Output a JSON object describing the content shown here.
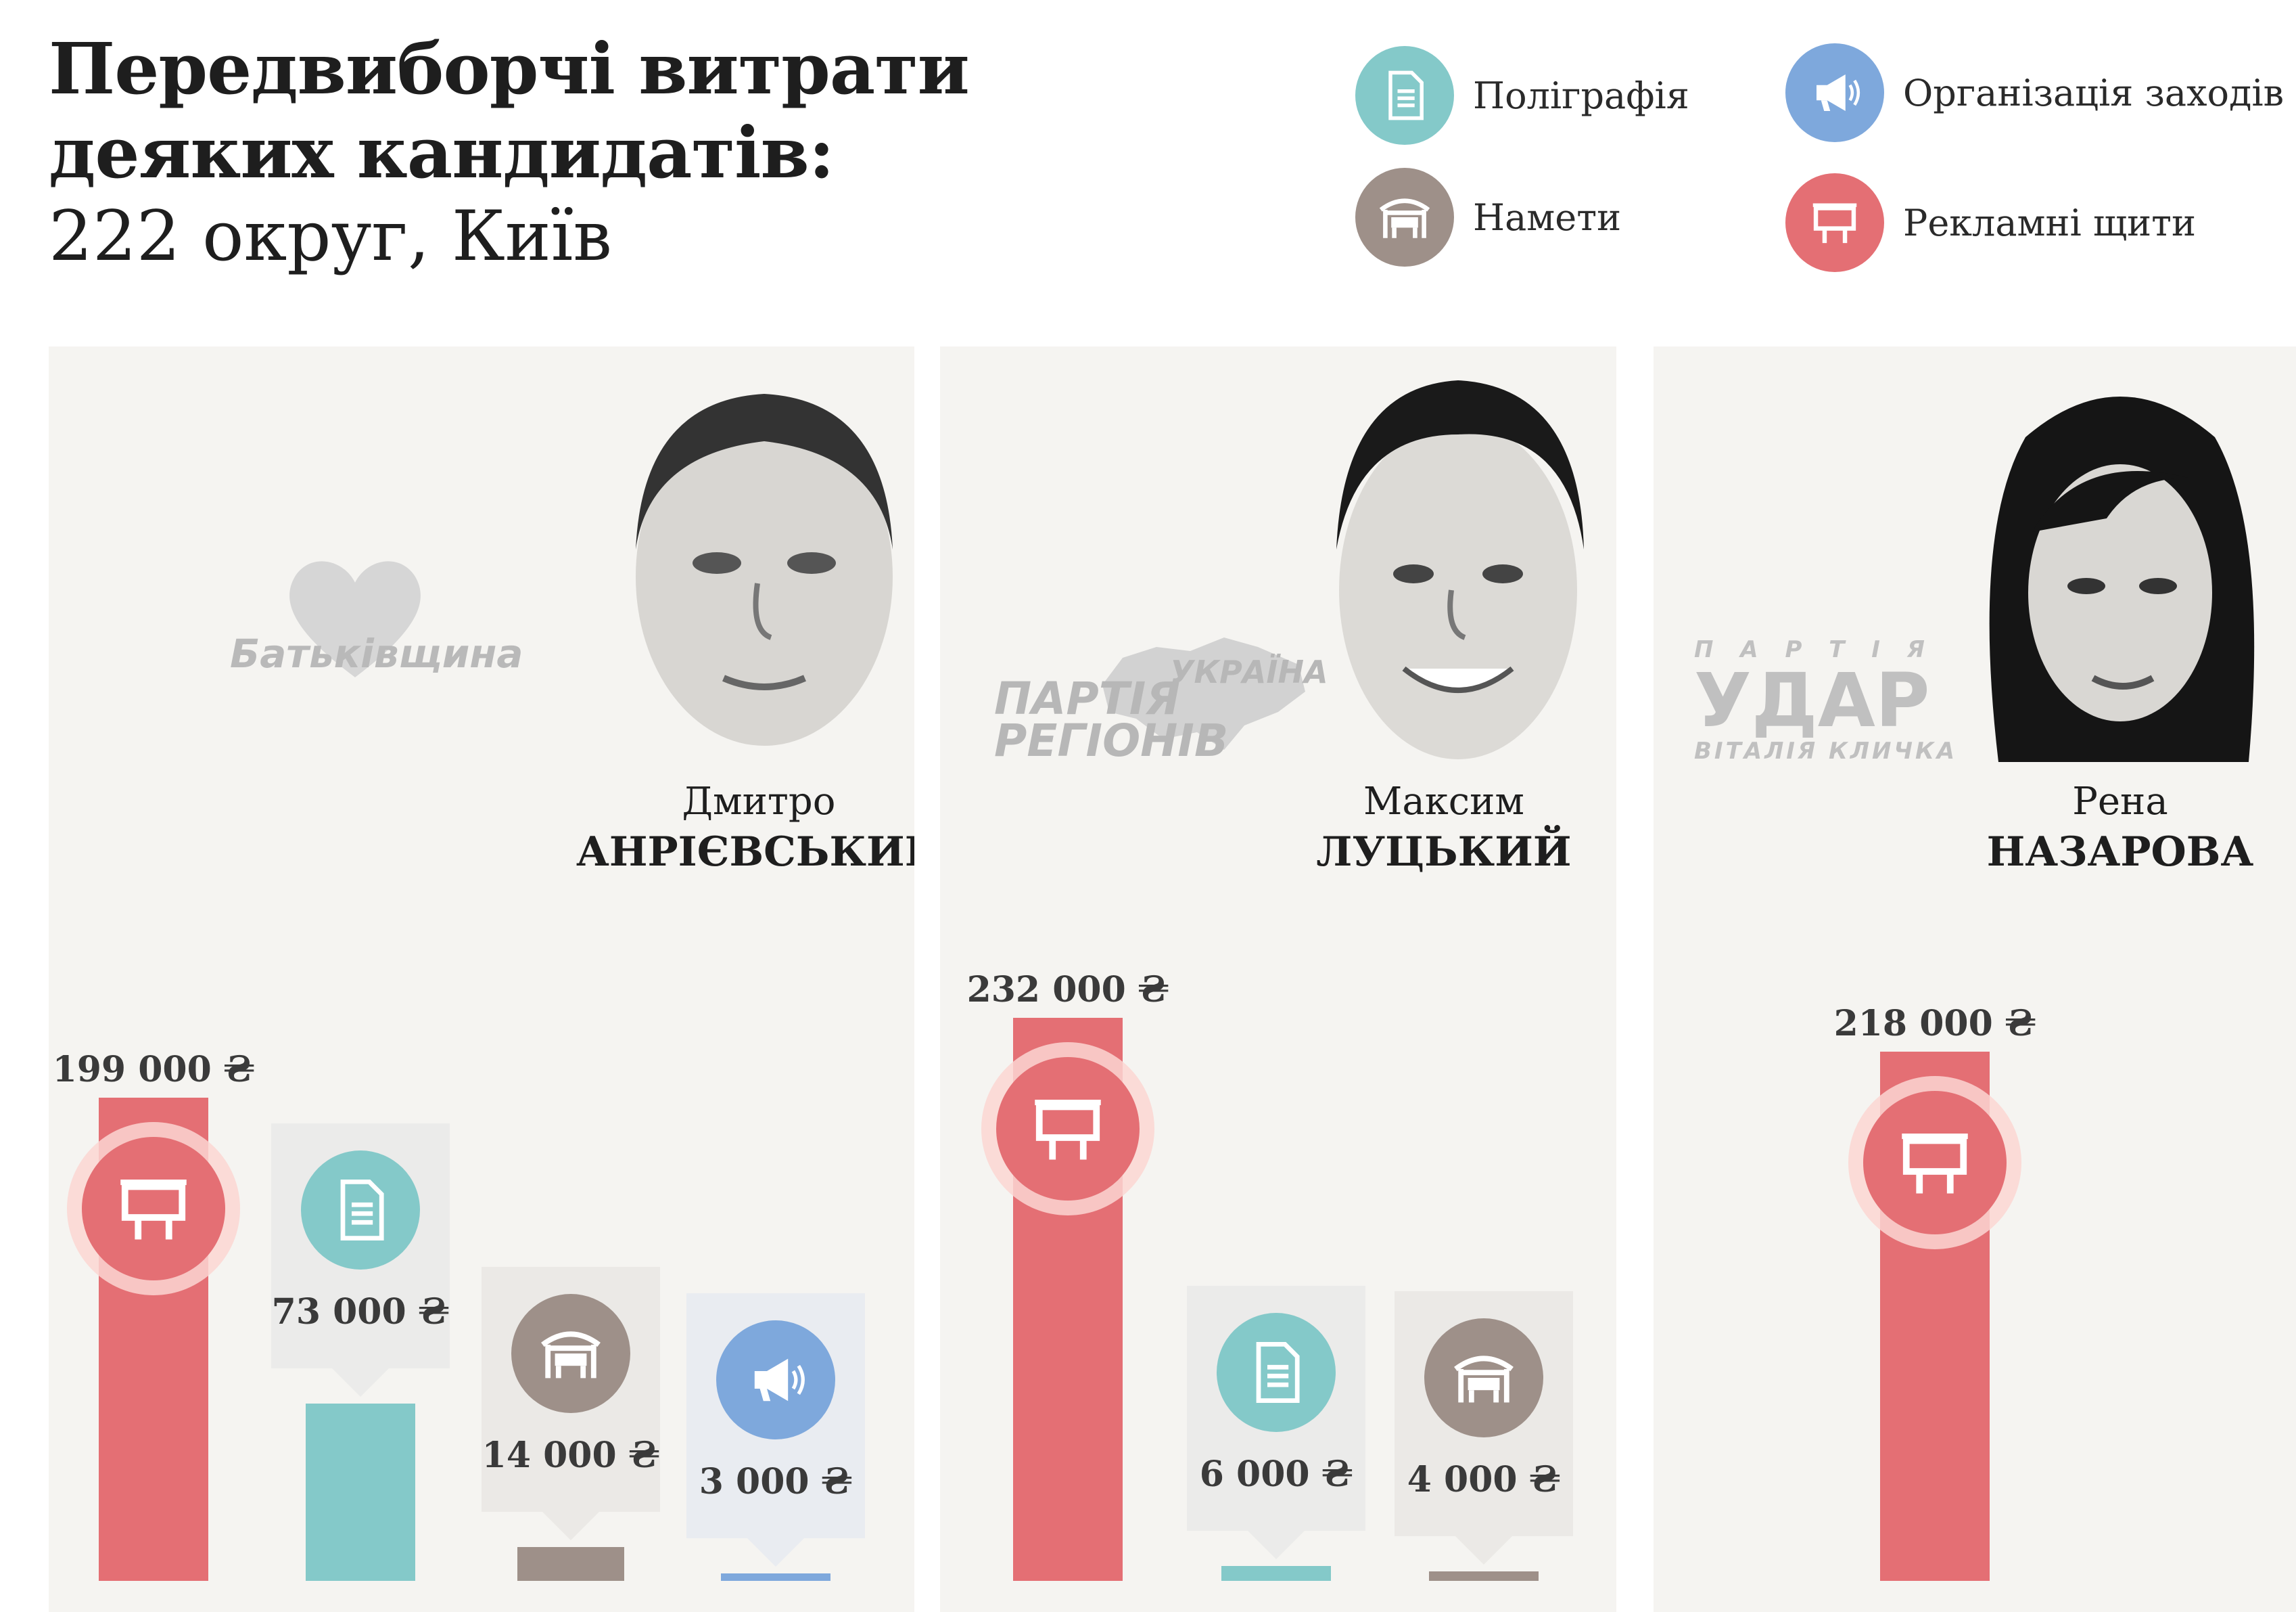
{
  "header": {
    "title_line1": "Передвиборчі витрати",
    "title_line2": "деяких кандидатів:",
    "subtitle": "222 округ, Київ"
  },
  "legend": [
    {
      "key": "printing",
      "label": "Поліграфія",
      "icon": "document-icon",
      "color": "#84c9c9"
    },
    {
      "key": "events",
      "label": "Організація заходів",
      "icon": "megaphone-icon",
      "color": "#7ea8dc"
    },
    {
      "key": "tents",
      "label": "Намети",
      "icon": "tent-icon",
      "color": "#9e9089"
    },
    {
      "key": "billboards",
      "label": "Рекламні щити",
      "icon": "billboard-icon",
      "color": "#e46f74"
    }
  ],
  "candidates": [
    {
      "first_name": "Дмитро",
      "last_name": "АНРІЄВСЬКИЙ",
      "party_logo": "Батьківщина"
    },
    {
      "first_name": "Максим",
      "last_name": "ЛУЦЬКИЙ",
      "party_logo_line1": "ПАРТІЯ",
      "party_logo_line2": "РЕГІОНІВ",
      "party_logo_line3": "УКРАЇНА"
    },
    {
      "first_name": "Рена",
      "last_name": "НАЗАРОВА",
      "party_logo_line1": "П А Р Т І Я",
      "party_logo_line2": "УДАР",
      "party_logo_line3": "ВІТАЛІЯ КЛИЧКА"
    }
  ],
  "chart_data": {
    "type": "bar",
    "unit": "₴",
    "ylim": [
      0,
      232000
    ],
    "categories": [
      "Рекламні щити",
      "Поліграфія",
      "Намети",
      "Організація заходів"
    ],
    "panels": [
      {
        "candidate": "Дмитро АНРІЄВСЬКИЙ",
        "bars": [
          {
            "category": "Рекламні щити",
            "value": 199000,
            "label": "199 000 ₴"
          },
          {
            "category": "Поліграфія",
            "value": 73000,
            "label": "73 000 ₴"
          },
          {
            "category": "Намети",
            "value": 14000,
            "label": "14 000 ₴"
          },
          {
            "category": "Організація заходів",
            "value": 3000,
            "label": "3 000 ₴"
          }
        ]
      },
      {
        "candidate": "Максим ЛУЦЬКИЙ",
        "bars": [
          {
            "category": "Рекламні щити",
            "value": 232000,
            "label": "232 000 ₴"
          },
          {
            "category": "Поліграфія",
            "value": 6000,
            "label": "6 000 ₴"
          },
          {
            "category": "Намети",
            "value": 4000,
            "label": "4 000 ₴"
          }
        ]
      },
      {
        "candidate": "Рена НАЗАРОВА",
        "bars": [
          {
            "category": "Рекламні щити",
            "value": 218000,
            "label": "218 000 ₴"
          }
        ]
      }
    ]
  }
}
